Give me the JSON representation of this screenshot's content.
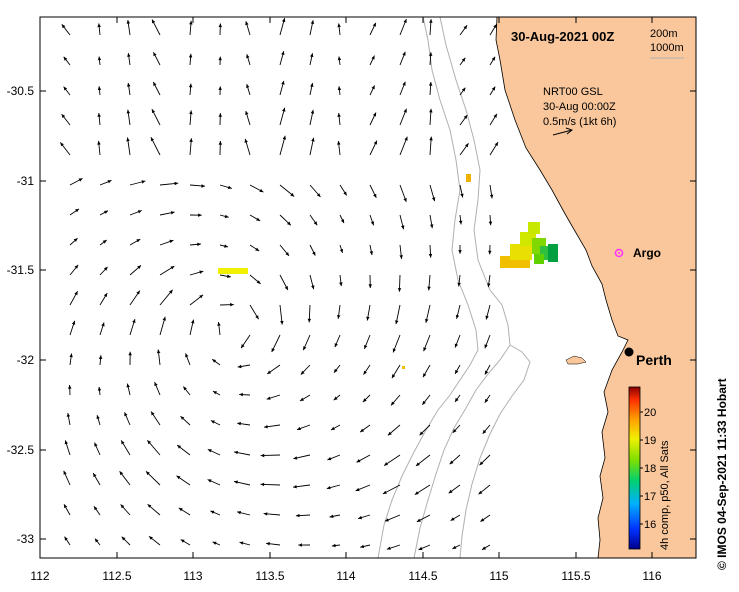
{
  "map": {
    "title": "30-Aug-2021 00Z",
    "depth_legend": [
      "200m",
      "1000m"
    ],
    "product": {
      "line1": "NRT00 GSL",
      "line2": "30-Aug 00:00Z",
      "scale_label": "0.5m/s (1kt 6h)"
    },
    "x_ticks": [
      "112",
      "112.5",
      "113",
      "113.5",
      "114",
      "114.5",
      "115",
      "115.5",
      "116"
    ],
    "y_ticks": [
      "-30.5",
      "-31",
      "-31.5",
      "-32",
      "-32.5",
      "-33"
    ],
    "places": {
      "argo": "Argo",
      "perth": "Perth"
    },
    "colorbar": {
      "ticks": [
        "20",
        "19",
        "18",
        "17",
        "16"
      ],
      "label": "4h comp, p50, All Sats"
    },
    "credit": "© IMOS 04-Sep-2021 11:33 Hobart",
    "colors": {
      "land": "#f9c79b",
      "bathymetry": "#b0b0b0",
      "perth_marker": "#000000",
      "argo_marker": "#ff33ff"
    }
  }
}
